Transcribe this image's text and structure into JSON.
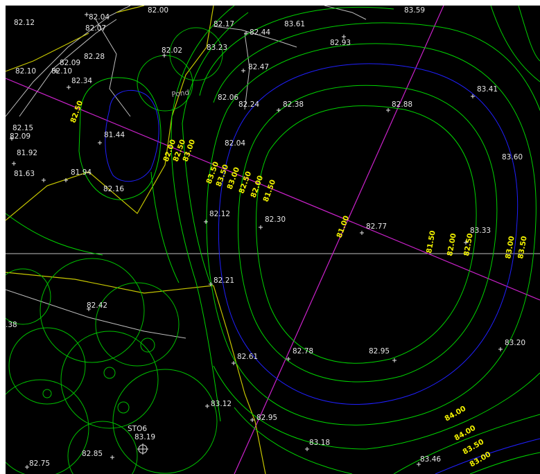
{
  "colors": {
    "background": "#000000",
    "contour_major": "#00d400",
    "contour_minor": "#2020ff",
    "spot_text": "#e8e8e8",
    "contour_label": "#f0f000",
    "alignment": "#cc22cc",
    "boundary": "#c8c800",
    "base_line": "#bfbfbf",
    "tree": "#00c000"
  },
  "pond_label": "Pond",
  "structure_label": "STO6",
  "spot_elevations": [
    {
      "text": "82.04"
    },
    {
      "text": "82.07"
    },
    {
      "text": "82.00"
    },
    {
      "text": "83.59"
    },
    {
      "text": "82.12"
    },
    {
      "text": "82.17"
    },
    {
      "text": "82.44"
    },
    {
      "text": "83.61"
    },
    {
      "text": "82.93"
    },
    {
      "text": "82.09"
    },
    {
      "text": "82.28"
    },
    {
      "text": "82.02"
    },
    {
      "text": "83.23"
    },
    {
      "text": "82.47"
    },
    {
      "text": "82.10"
    },
    {
      "text": "82.10"
    },
    {
      "text": "82.34"
    },
    {
      "text": "83.41"
    },
    {
      "text": "82.06"
    },
    {
      "text": "82.24"
    },
    {
      "text": "82.38"
    },
    {
      "text": "82.88"
    },
    {
      "text": "82.15"
    },
    {
      "text": "82.09"
    },
    {
      "text": "81.44"
    },
    {
      "text": "81.92"
    },
    {
      "text": "82.04"
    },
    {
      "text": "83.60"
    },
    {
      "text": "81.63"
    },
    {
      "text": "81.94"
    },
    {
      "text": "82.16"
    },
    {
      "text": "82.12"
    },
    {
      "text": "82.30"
    },
    {
      "text": "82.77"
    },
    {
      "text": "83.33"
    },
    {
      "text": "82.21"
    },
    {
      "text": "82.42"
    },
    {
      "text": ".38"
    },
    {
      "text": "82.61"
    },
    {
      "text": "82.78"
    },
    {
      "text": "82.95"
    },
    {
      "text": "83.20"
    },
    {
      "text": "83.12"
    },
    {
      "text": "82.95"
    },
    {
      "text": "83.19"
    },
    {
      "text": "83.18"
    },
    {
      "text": "82.75"
    },
    {
      "text": "82.85"
    },
    {
      "text": "83.46"
    }
  ],
  "contour_labels": [
    {
      "text": "82.50"
    },
    {
      "text": "82.00"
    },
    {
      "text": "82.50"
    },
    {
      "text": "83.00"
    },
    {
      "text": "83.50"
    },
    {
      "text": "83.50"
    },
    {
      "text": "83.00"
    },
    {
      "text": "82.50"
    },
    {
      "text": "82.00"
    },
    {
      "text": "81.50"
    },
    {
      "text": "81.00"
    },
    {
      "text": "81.50"
    },
    {
      "text": "82.00"
    },
    {
      "text": "82.50"
    },
    {
      "text": "83.00"
    },
    {
      "text": "83.50"
    },
    {
      "text": "84.00"
    },
    {
      "text": "84.00"
    },
    {
      "text": "83.50"
    },
    {
      "text": "83.00"
    }
  ]
}
